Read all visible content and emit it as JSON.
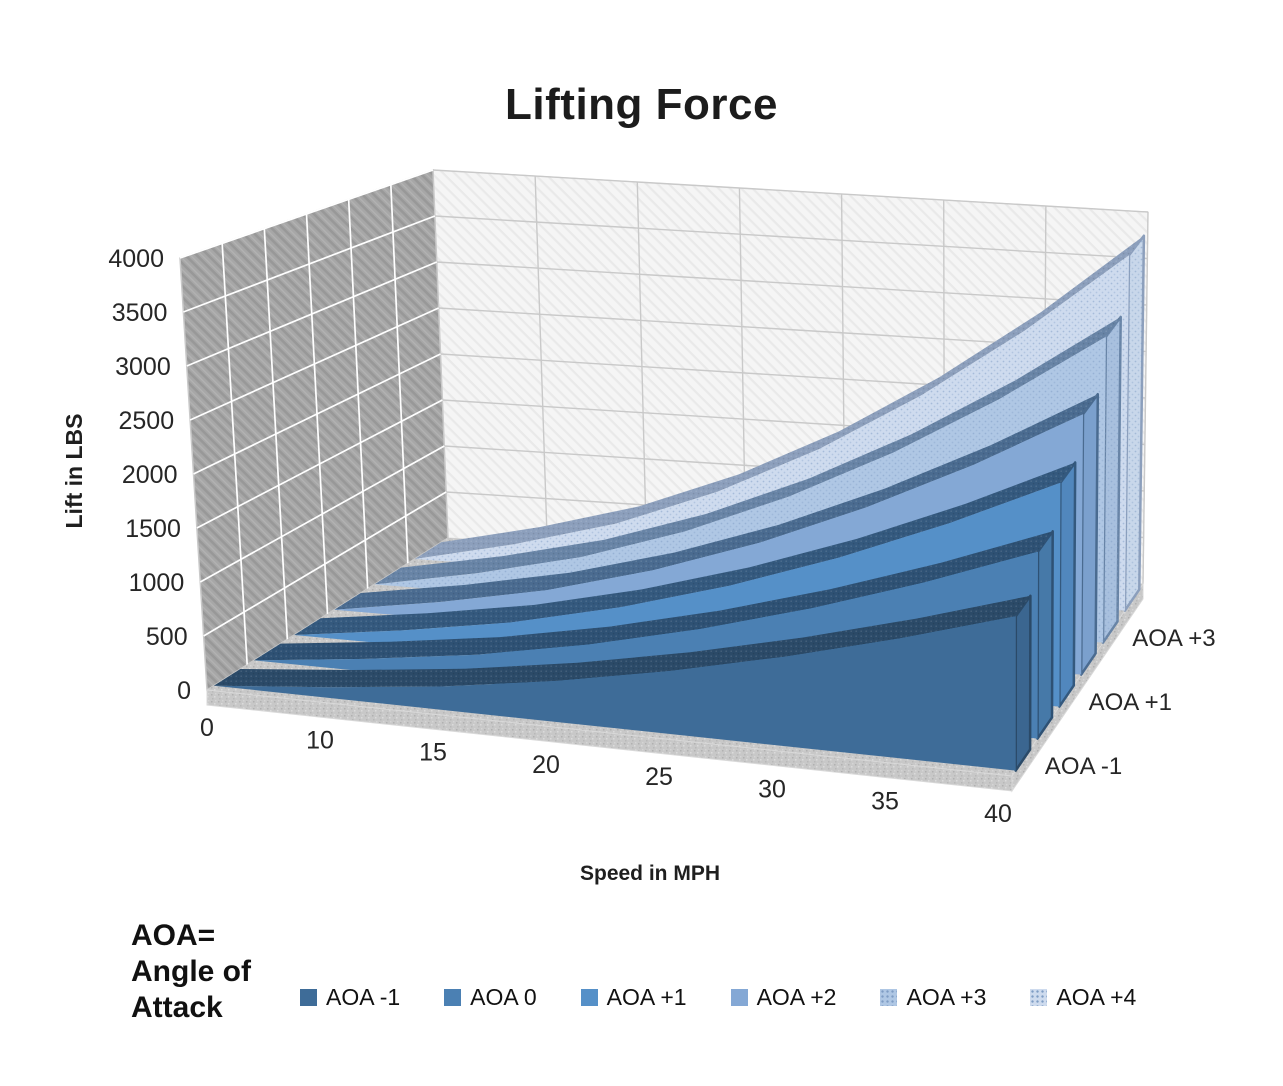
{
  "title": "Lifting Force",
  "aoa_note": {
    "lines": [
      "AOA=",
      "Angle of",
      "Attack"
    ]
  },
  "chart_data": {
    "type": "area",
    "variant": "3d",
    "title": "Lifting Force",
    "xlabel": "Speed in MPH",
    "ylabel": "Lift in LBS",
    "categories": [
      "0",
      "10",
      "15",
      "20",
      "25",
      "30",
      "35",
      "40"
    ],
    "y_ticks": [
      0,
      500,
      1000,
      1500,
      2000,
      2500,
      3000,
      3500,
      4000
    ],
    "ylim": [
      0,
      4000
    ],
    "grid": true,
    "legend_position": "bottom",
    "series": [
      {
        "name": "AOA -1",
        "values": [
          0,
          100,
          225,
          400,
          625,
          900,
          1225,
          1600
        ],
        "face_color": "#3E6C98",
        "edge_color": "#2B4A68",
        "cap_color": "#3B6690",
        "dotted": false
      },
      {
        "name": "AOA 0",
        "values": [
          0,
          122,
          274,
          488,
          762,
          1097,
          1493,
          1950
        ],
        "face_color": "#4B80B3",
        "edge_color": "#2E5174",
        "cap_color": "#4679A8",
        "dotted": false
      },
      {
        "name": "AOA +1",
        "values": [
          0,
          147,
          330,
          588,
          918,
          1322,
          1799,
          2350
        ],
        "face_color": "#5590C8",
        "edge_color": "#34597E",
        "cap_color": "#5187BD",
        "dotted": false
      },
      {
        "name": "AOA +2",
        "values": [
          0,
          172,
          387,
          688,
          1074,
          1547,
          2105,
          2750
        ],
        "face_color": "#84A8D5",
        "edge_color": "#4A6B90",
        "cap_color": "#7BA0CD",
        "dotted": false
      },
      {
        "name": "AOA +3",
        "values": [
          0,
          203,
          457,
          813,
          1270,
          1828,
          2488,
          3250
        ],
        "face_color": "#AFC7E4",
        "edge_color": "#6884A6",
        "cap_color": "#A8C0DE",
        "dotted": true
      },
      {
        "name": "AOA +4",
        "values": [
          0,
          238,
          534,
          950,
          1484,
          2138,
          2909,
          3800
        ],
        "face_color": "#CEDBEE",
        "edge_color": "#8C9FBC",
        "cap_color": "#C8D7EA",
        "dotted": true
      }
    ],
    "depth_axis_labels": [
      {
        "label": "AOA -1",
        "series_index": 0
      },
      {
        "label": "AOA +1",
        "series_index": 2
      },
      {
        "label": "AOA +3",
        "series_index": 4
      }
    ],
    "walls": {
      "side_wall_color": "#A7A7A7",
      "back_wall_color": "#F5F5F5",
      "floor_color": "#C8C8C8",
      "side_grid_color": "#FFFFFF",
      "back_grid_color": "#C9C9C9"
    }
  }
}
